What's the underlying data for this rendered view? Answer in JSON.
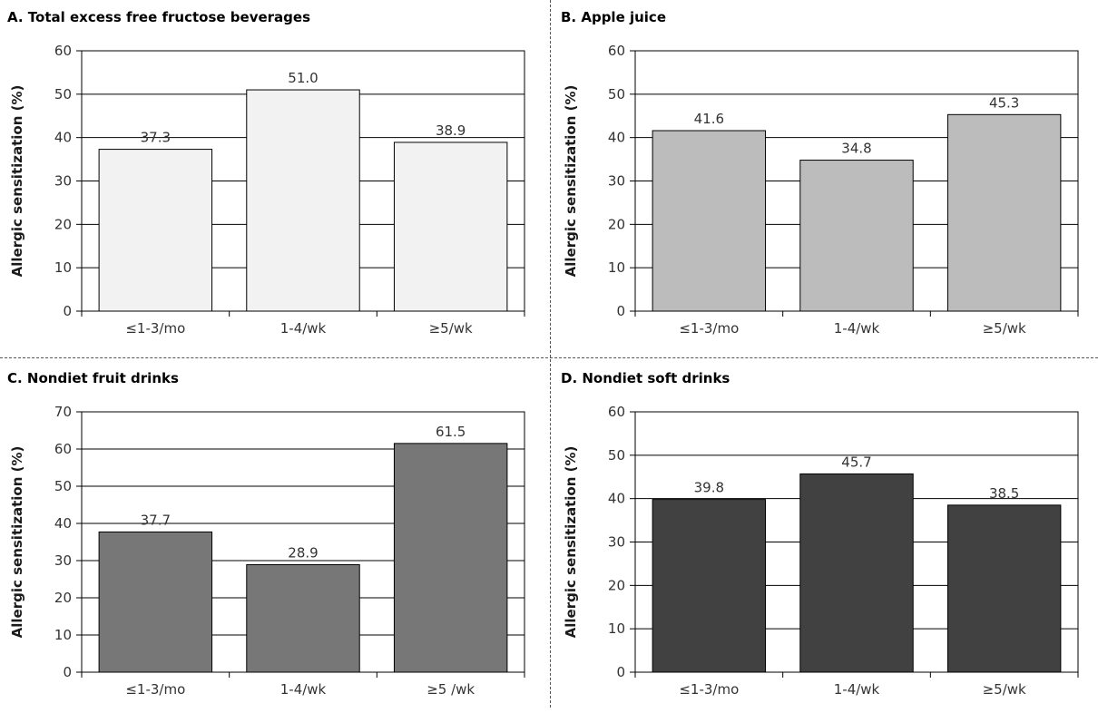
{
  "chart_data": [
    {
      "type": "bar",
      "title": "A. Total excess free fructose beverages",
      "ylabel": "Allergic sensitization (%)",
      "xlabel": "",
      "categories": [
        "≤1-3/mo",
        "1-4/wk",
        "≥5/wk"
      ],
      "values": [
        37.3,
        51.0,
        38.9
      ],
      "value_labels": [
        "37.3",
        "51.0",
        "38.9"
      ],
      "ylim": [
        0,
        60
      ],
      "yticks": [
        0,
        10,
        20,
        30,
        40,
        50,
        60
      ],
      "grid": true,
      "color": "#f2f2f2"
    },
    {
      "type": "bar",
      "title": "B. Apple juice",
      "ylabel": "Allergic sensitization (%)",
      "xlabel": "",
      "categories": [
        "≤1-3/mo",
        "1-4/wk",
        "≥5/wk"
      ],
      "values": [
        41.6,
        34.8,
        45.3
      ],
      "value_labels": [
        "41.6",
        "34.8",
        "45.3"
      ],
      "ylim": [
        0,
        60
      ],
      "yticks": [
        0,
        10,
        20,
        30,
        40,
        50,
        60
      ],
      "grid": true,
      "color": "#bcbcbc"
    },
    {
      "type": "bar",
      "title": "C. Nondiet fruit drinks",
      "ylabel": "Allergic sensitization (%)",
      "xlabel": "",
      "categories": [
        "≤1-3/mo",
        "1-4/wk",
        "≥5 /wk"
      ],
      "values": [
        37.7,
        28.9,
        61.5
      ],
      "value_labels": [
        "37.7",
        "28.9",
        "61.5"
      ],
      "ylim": [
        0,
        70
      ],
      "yticks": [
        0,
        10,
        20,
        30,
        40,
        50,
        60,
        70
      ],
      "grid": true,
      "color": "#777777"
    },
    {
      "type": "bar",
      "title": "D. Nondiet soft drinks",
      "ylabel": "Allergic sensitization (%)",
      "xlabel": "",
      "categories": [
        "≤1-3/mo",
        "1-4/wk",
        "≥5/wk"
      ],
      "values": [
        39.8,
        45.7,
        38.5
      ],
      "value_labels": [
        "39.8",
        "45.7",
        "38.5"
      ],
      "ylim": [
        0,
        60
      ],
      "yticks": [
        0,
        10,
        20,
        30,
        40,
        50,
        60
      ],
      "grid": true,
      "color": "#414141"
    }
  ]
}
